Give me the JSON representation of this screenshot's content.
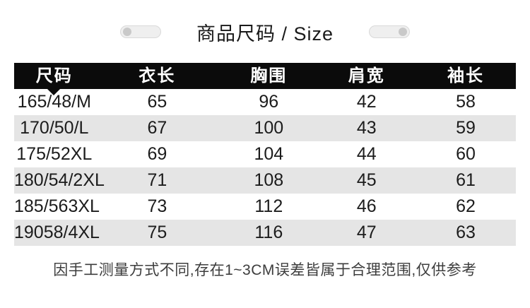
{
  "title": {
    "text": "商品尺码 / Size"
  },
  "chart_data": {
    "type": "table",
    "title": "商品尺码 / Size",
    "columns": [
      "尺码",
      "衣长",
      "胸围",
      "肩宽",
      "袖长"
    ],
    "rows": [
      [
        "165/48/M",
        "65",
        "96",
        "42",
        "58"
      ],
      [
        "170/50/L",
        "67",
        "100",
        "43",
        "59"
      ],
      [
        "175/52XL",
        "69",
        "104",
        "44",
        "60"
      ],
      [
        "180/54/2XL",
        "71",
        "108",
        "45",
        "61"
      ],
      [
        "185/563XL",
        "73",
        "112",
        "46",
        "62"
      ],
      [
        "19058/4XL",
        "75",
        "116",
        "47",
        "63"
      ]
    ],
    "layout_hints": {
      "header_style": "black bar, white bold text",
      "alternating_rows": true,
      "pointer_under_first_header": true
    }
  },
  "note": {
    "text": "因手工测量方式不同,存在1~3CM误差皆属于合理范围,仅供参考"
  },
  "colors": {
    "page_bg": "#ffffff",
    "header_bg": "#0b0b0b",
    "header_text": "#ffffff",
    "row_alt_bg": "#e5e5e5",
    "row_text": "#1c1c1c",
    "title_text": "#1a1a1a",
    "note_text": "#3d3d3d",
    "pill_bg": "#efefef",
    "pill_border": "#d9d9d9",
    "pill_knob": "#c9c9c9"
  }
}
